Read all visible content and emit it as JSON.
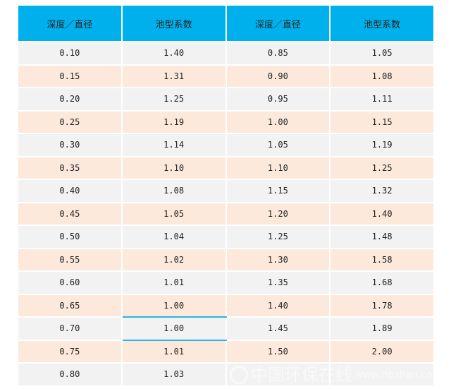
{
  "table": {
    "headers": [
      "深度／直径",
      "池型系数",
      "深度／直径",
      "池型系数"
    ],
    "rows": [
      [
        "0.10",
        "1.40",
        "0.85",
        "1.05"
      ],
      [
        "0.15",
        "1.31",
        "0.90",
        "1.08"
      ],
      [
        "0.20",
        "1.25",
        "0.95",
        "1.11"
      ],
      [
        "0.25",
        "1.19",
        "1.00",
        "1.15"
      ],
      [
        "0.30",
        "1.14",
        "1.05",
        "1.19"
      ],
      [
        "0.35",
        "1.10",
        "1.10",
        "1.25"
      ],
      [
        "0.40",
        "1.08",
        "1.15",
        "1.32"
      ],
      [
        "0.45",
        "1.05",
        "1.20",
        "1.40"
      ],
      [
        "0.50",
        "1.04",
        "1.25",
        "1.48"
      ],
      [
        "0.55",
        "1.02",
        "1.30",
        "1.58"
      ],
      [
        "0.60",
        "1.01",
        "1.35",
        "1.68"
      ],
      [
        "0.65",
        "1.00",
        "1.40",
        "1.78"
      ],
      [
        "0.70",
        "1.00",
        "1.45",
        "1.89"
      ],
      [
        "0.75",
        "1.01",
        "1.50",
        "2.00"
      ],
      [
        "0.80",
        "1.03",
        "",
        ""
      ]
    ]
  },
  "watermark": {
    "cn": "中国环保在线",
    "en": "www.hbzhan.com"
  },
  "colors": {
    "header": "#00b0ec",
    "row_odd": "#f2f2f2",
    "row_even": "#fde9db",
    "highlight_line": "#2bb5e8"
  }
}
